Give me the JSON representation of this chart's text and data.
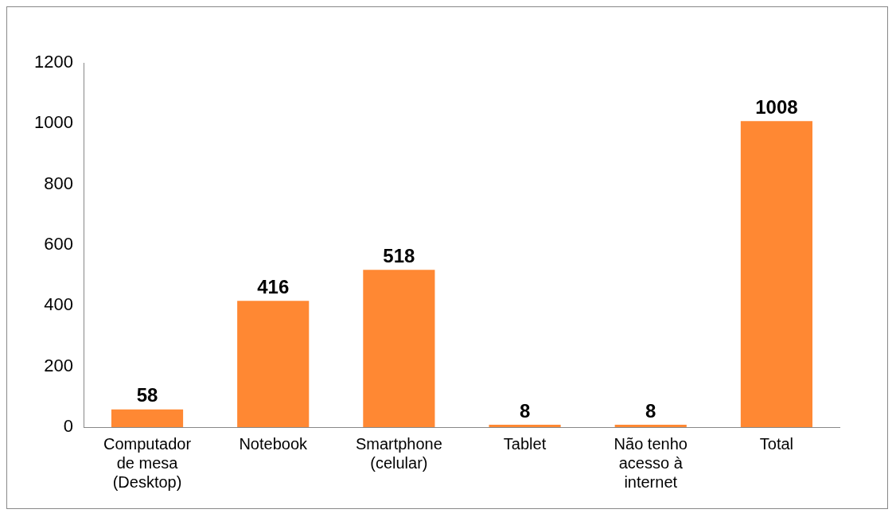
{
  "chart_data": {
    "type": "bar",
    "categories": [
      "Computador de mesa (Desktop)",
      "Notebook",
      "Smartphone (celular)",
      "Tablet",
      "Não tenho acesso à internet",
      "Total"
    ],
    "values": [
      58,
      416,
      518,
      8,
      8,
      1008
    ],
    "color": "#ff8833",
    "ylim": [
      0,
      1200
    ],
    "yticks": [
      0,
      200,
      400,
      600,
      800,
      1000,
      1200
    ],
    "grid": false,
    "legend": false,
    "data_labels": true
  }
}
